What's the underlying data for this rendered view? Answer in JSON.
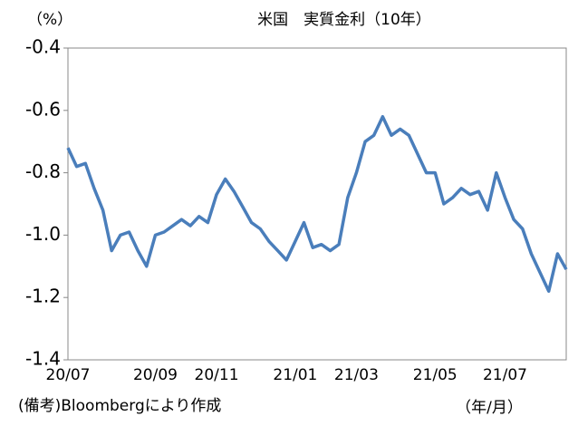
{
  "chart_data": {
    "type": "line",
    "title": "米国　実質金利（10年）",
    "y_label": "（%）",
    "x_unit": "（年/月）",
    "note": "(備考)Bloombergにより作成",
    "categories": [
      "20/07",
      null,
      null,
      null,
      null,
      null,
      null,
      null,
      null,
      null,
      "20/09",
      null,
      null,
      null,
      null,
      null,
      null,
      "20/11",
      null,
      null,
      null,
      null,
      null,
      null,
      null,
      null,
      "21/01",
      null,
      null,
      null,
      null,
      null,
      null,
      "21/03",
      null,
      null,
      null,
      null,
      null,
      null,
      null,
      null,
      "21/05",
      null,
      null,
      null,
      null,
      null,
      null,
      null,
      "21/07",
      null,
      null,
      null,
      null,
      null,
      null,
      null
    ],
    "series": [
      {
        "name": "米国 実質金利",
        "color": "#4a7ebb",
        "values": [
          -0.72,
          -0.78,
          -0.77,
          -0.85,
          -0.92,
          -1.05,
          -1.0,
          -0.99,
          -1.05,
          -1.1,
          -1.0,
          -0.99,
          -0.97,
          -0.95,
          -0.97,
          -0.94,
          -0.96,
          -0.87,
          -0.82,
          -0.86,
          -0.91,
          -0.96,
          -0.98,
          -1.02,
          -1.05,
          -1.08,
          -1.02,
          -0.96,
          -1.04,
          -1.03,
          -1.05,
          -1.03,
          -0.88,
          -0.8,
          -0.7,
          -0.68,
          -0.62,
          -0.68,
          -0.66,
          -0.68,
          -0.74,
          -0.8,
          -0.8,
          -0.9,
          -0.88,
          -0.85,
          -0.87,
          -0.86,
          -0.92,
          -0.8,
          -0.88,
          -0.95,
          -0.98,
          -1.06,
          -1.12,
          -1.18,
          -1.06,
          -1.11
        ]
      }
    ],
    "ylim": [
      -1.4,
      -0.4
    ],
    "yticks": [
      -1.4,
      -1.2,
      {
        "value": -1,
        "label": "-1.0"
      },
      -0.8,
      -0.6,
      -0.4
    ]
  }
}
